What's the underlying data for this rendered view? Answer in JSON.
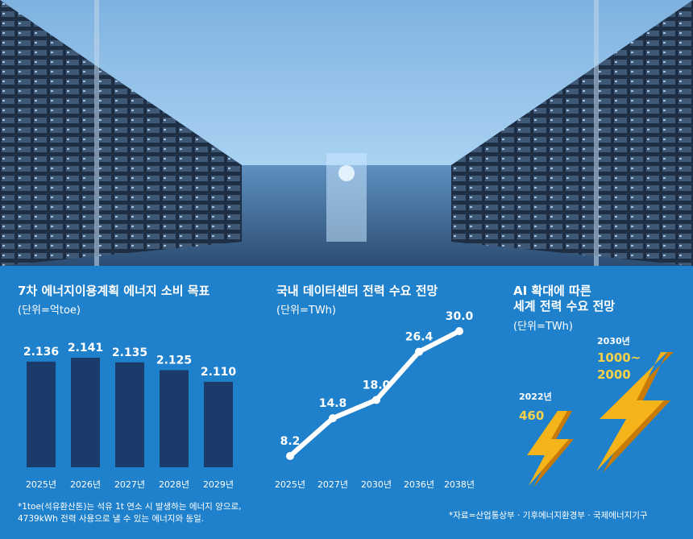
{
  "colors": {
    "panel": "#1f80cb",
    "bar": "#1b3c6b",
    "line": "#ffffff",
    "bolt": "#f5b419",
    "highlight": "#f6d24a"
  },
  "photo": {
    "subject": "data-center-aisle-photo"
  },
  "chart_data": [
    {
      "type": "bar",
      "title": "7차 에너지이용계획 에너지 소비 목표",
      "unit": "(단위=억toe)",
      "categories": [
        "2025년",
        "2026년",
        "2027년",
        "2028년",
        "2029년"
      ],
      "values": [
        2.136,
        2.141,
        2.135,
        2.125,
        2.11
      ],
      "labels": [
        "2.136",
        "2.141",
        "2.135",
        "2.125",
        "2.110"
      ]
    },
    {
      "type": "line",
      "title": "국내 데이터센터 전력 수요 전망",
      "unit": "(단위=TWh)",
      "categories": [
        "2025년",
        "2027년",
        "2030년",
        "2036년",
        "2038년"
      ],
      "values": [
        8.2,
        14.8,
        18.0,
        26.4,
        30.0
      ],
      "labels": [
        "8.2",
        "14.8",
        "18.0",
        "26.4",
        "30.0"
      ]
    },
    {
      "type": "other",
      "title": "AI 확대에 따른\n세계 전력 수요 전망",
      "title_lines": [
        "AI 확대에 따른",
        "세계 전력 수요 전망"
      ],
      "unit": "(단위=TWh)",
      "items": [
        {
          "year": "2022년",
          "value_text": "460",
          "value": 460
        },
        {
          "year": "2030년",
          "value_lines": [
            "1000~",
            "2000"
          ],
          "value_range": [
            1000,
            2000
          ]
        }
      ]
    }
  ],
  "footnotes": {
    "toe_note_lines": [
      "*1toe(석유환산톤)는 석유 1t 연소 시 발생하는 에너지 양으로,",
      "4739kWh 전력 사용으로 낼 수 있는 에너지와 동일."
    ],
    "source": "*자료=산업통상부 · 기후에너지환경부 · 국제에너지기구"
  }
}
